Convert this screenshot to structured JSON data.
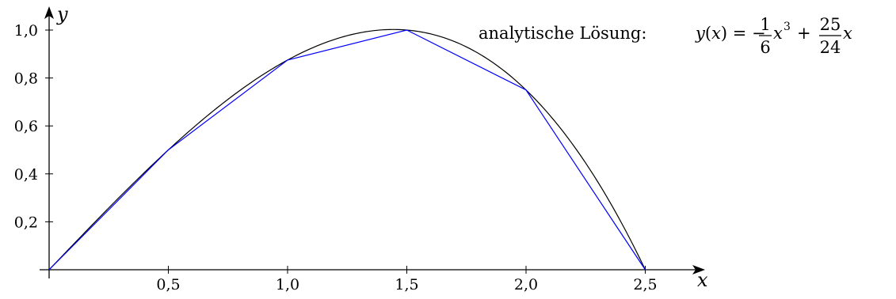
{
  "chart_data": {
    "type": "line",
    "xlabel": "x",
    "ylabel": "y",
    "xlim": [
      0,
      2.7
    ],
    "ylim": [
      0,
      1.0
    ],
    "x_ticks": [
      {
        "value": 0.5,
        "label": "0,5"
      },
      {
        "value": 1.0,
        "label": "1,0"
      },
      {
        "value": 1.5,
        "label": "1,5"
      },
      {
        "value": 2.0,
        "label": "2,0"
      },
      {
        "value": 2.5,
        "label": "2,5"
      }
    ],
    "y_ticks": [
      {
        "value": 0.2,
        "label": "0,2"
      },
      {
        "value": 0.4,
        "label": "0,4"
      },
      {
        "value": 0.6,
        "label": "0,6"
      },
      {
        "value": 0.8,
        "label": "0,8"
      },
      {
        "value": 1.0,
        "label": "1,0"
      }
    ],
    "grid": false,
    "legend_position": "top-right",
    "annotation": {
      "text": "analytische Lösung:",
      "formula_lhs": "y(x) = −",
      "fraction1_num": "1",
      "fraction1_den": "6",
      "term1": "x",
      "exponent": "3",
      "plus": "+",
      "fraction2_num": "25",
      "fraction2_den": "24",
      "term2": "x"
    },
    "series": [
      {
        "color": "#000000",
        "style": "curve",
        "function": "-1/6*x^3 + 25/24*x",
        "x_range": [
          0,
          2.5
        ]
      },
      {
        "color": "#0000ff",
        "style": "polyline",
        "x": [
          0,
          0.5,
          1.0,
          1.5,
          2.0,
          2.5
        ],
        "y": [
          0,
          0.5,
          0.875,
          1.0,
          0.75,
          0
        ]
      }
    ]
  }
}
